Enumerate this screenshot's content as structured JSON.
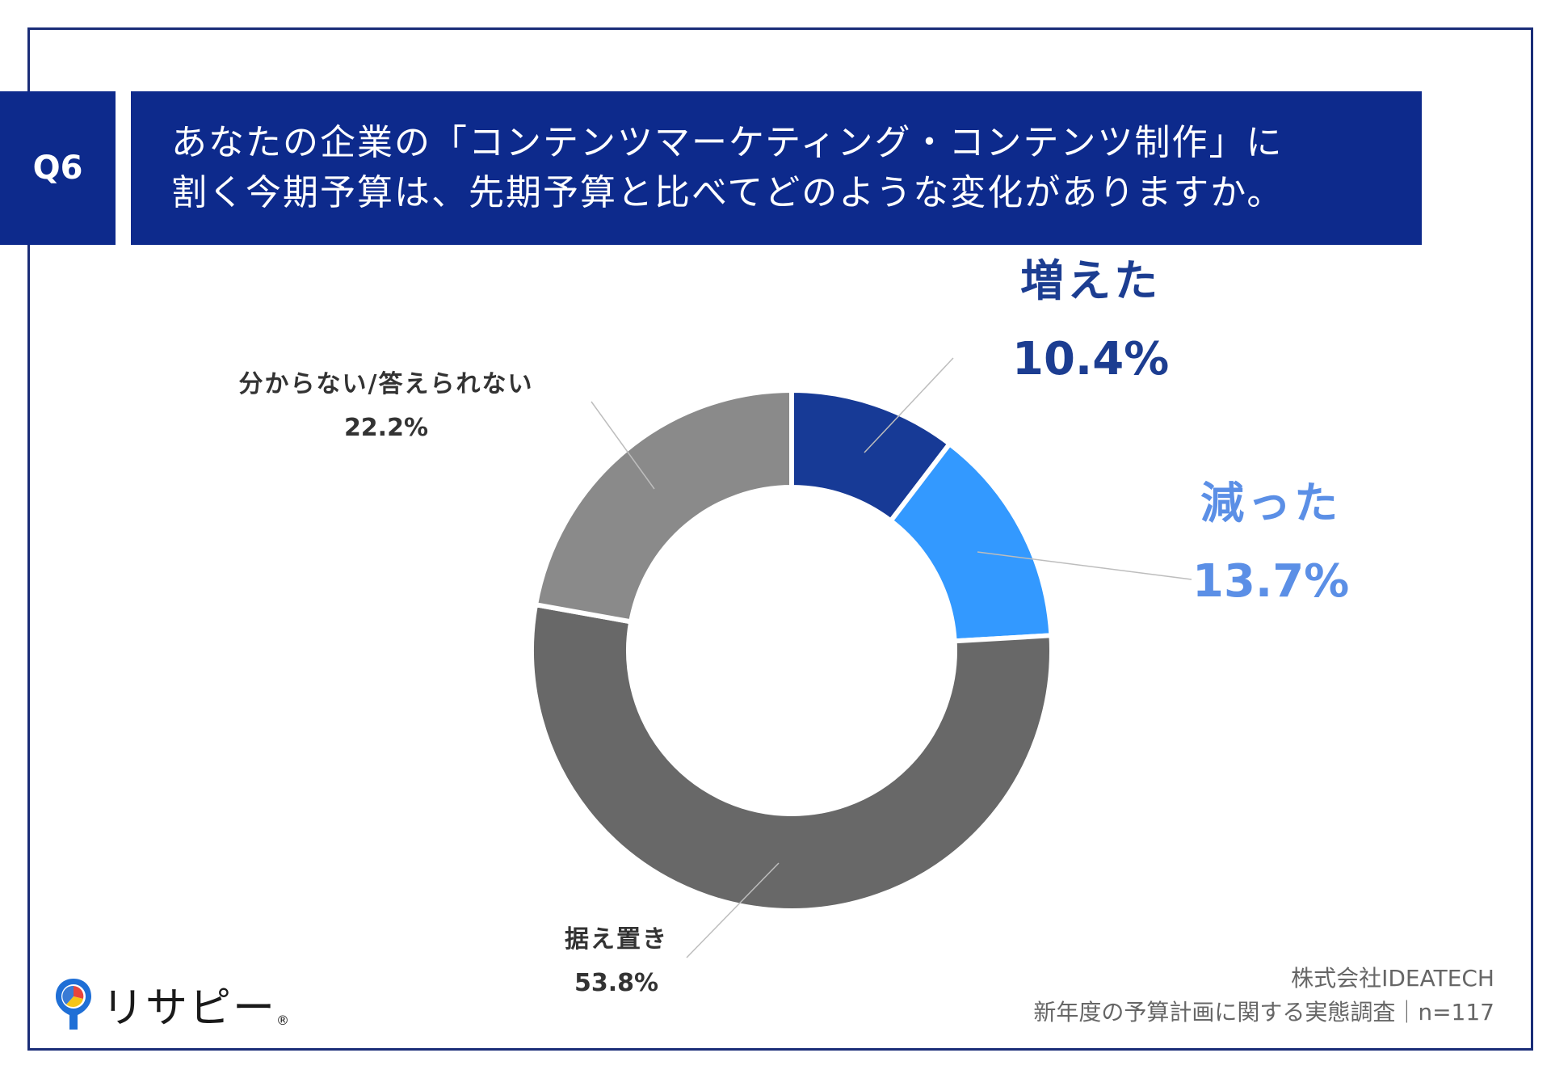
{
  "question": {
    "number": "Q6",
    "line1": "あなたの企業の「コンテンツマーケティング・コンテンツ制作」に",
    "line2": "割く今期予算は、先期予算と比べてどのような変化がありますか。"
  },
  "chart_data": {
    "type": "pie",
    "subtype": "donut",
    "categories": [
      "増えた",
      "減った",
      "据え置き",
      "分からない/答えられない"
    ],
    "values": [
      10.4,
      13.7,
      53.8,
      22.2
    ],
    "value_labels": [
      "10.4%",
      "13.7%",
      "53.8%",
      "22.2%"
    ],
    "colors": [
      "#173a96",
      "#3399ff",
      "#686868",
      "#8a8a8a"
    ],
    "label_colors": [
      "#1c3d91",
      "#5b8fe6",
      "#333333",
      "#333333"
    ],
    "unit": "%"
  },
  "footer": {
    "logo_text": "リサピー",
    "logo_mark": "®",
    "source_line1": "株式会社IDEATECH",
    "source_line2": "新年度の予算計画に関する実態調査｜n=117"
  }
}
